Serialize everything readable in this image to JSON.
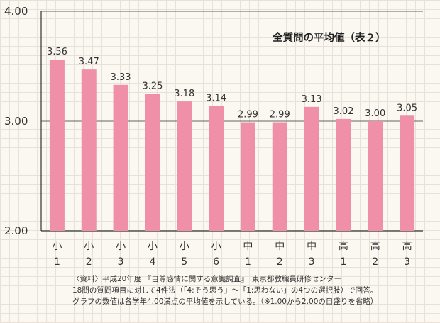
{
  "chart_data": {
    "type": "bar",
    "title": "全質問の平均値（表２）",
    "categories": [
      "小\n1",
      "小\n2",
      "小\n3",
      "小\n4",
      "小\n5",
      "小\n6",
      "中\n1",
      "中\n2",
      "中\n3",
      "高\n1",
      "高\n2",
      "高\n3"
    ],
    "values": [
      3.56,
      3.47,
      3.33,
      3.25,
      3.18,
      3.14,
      2.99,
      2.99,
      3.13,
      3.02,
      3.0,
      3.05
    ],
    "value_labels": [
      "3.56",
      "3.47",
      "3.33",
      "3.25",
      "3.18",
      "3.14",
      "2.99",
      "2.99",
      "3.13",
      "3.02",
      "3.00",
      "3.05"
    ],
    "yticks": [
      "4.00",
      "3.00",
      "2.00"
    ],
    "ylim": [
      2,
      4
    ],
    "bar_color": "#ef8fa8",
    "grid": "horizontal"
  },
  "notes": {
    "line1": "〈資料〉平成20年度 『自尊感情に関する意識調査』　東京都教職員研修センター",
    "line2": "18問の質問項目に対して4件法（「4:そう思う」～「1:思わない」の4つの選択肢）で回答。",
    "line3": "グラフの数値は各学年4.00満点の平均値を示している。（※1.00から2.00の目盛りを省略）"
  }
}
